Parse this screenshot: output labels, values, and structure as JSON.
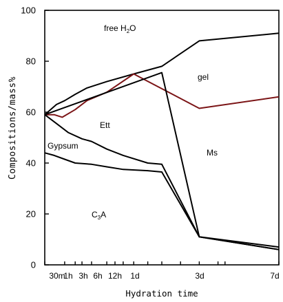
{
  "chart_data": {
    "type": "line",
    "xlabel": "Hydration time",
    "ylabel": "Compositions/mass%",
    "ylim": [
      0,
      100
    ],
    "yticks": [
      0,
      20,
      40,
      60,
      80,
      100
    ],
    "x_tick_labels": [
      "30m",
      "1h",
      "3h",
      "6h",
      "12h",
      "1d",
      "3d",
      "7d"
    ],
    "x_positions": [
      0.0,
      0.085,
      0.13,
      0.159,
      0.2,
      0.265,
      0.3,
      0.335,
      0.38,
      0.44,
      0.5,
      0.58,
      0.66,
      0.74,
      0.77,
      1.0
    ],
    "region_labels": {
      "free_h2o": {
        "main": "free H",
        "sub": "2",
        "tail": "O"
      },
      "gel": "gel",
      "ett": "Ett",
      "gypsum": "Gypsum",
      "ms": "Ms",
      "c3a": {
        "main": "C",
        "sub": "3",
        "tail": "A"
      }
    },
    "series": [
      {
        "color": "#000000",
        "points": [
          [
            0.0,
            59
          ],
          [
            0.05,
            63
          ],
          [
            0.085,
            64.5
          ],
          [
            0.13,
            67
          ],
          [
            0.18,
            69.5
          ],
          [
            0.265,
            72
          ],
          [
            0.38,
            75
          ],
          [
            0.5,
            78
          ],
          [
            0.66,
            88
          ],
          [
            1.0,
            91
          ]
        ]
      },
      {
        "color": "#7b1416",
        "points": [
          [
            0.0,
            59
          ],
          [
            0.04,
            59
          ],
          [
            0.075,
            58
          ],
          [
            0.13,
            61
          ],
          [
            0.18,
            64.5
          ],
          [
            0.265,
            67.8
          ],
          [
            0.38,
            75
          ],
          [
            0.66,
            61.5
          ],
          [
            1.0,
            66
          ]
        ]
      },
      {
        "color": "#000000",
        "points": [
          [
            0.0,
            59
          ],
          [
            0.5,
            75.5
          ],
          [
            0.66,
            11
          ],
          [
            1.0,
            7
          ]
        ]
      },
      {
        "color": "#000000",
        "points": [
          [
            0.0,
            59
          ],
          [
            0.05,
            55.5
          ],
          [
            0.1,
            52
          ],
          [
            0.159,
            49.5
          ],
          [
            0.2,
            48.5
          ],
          [
            0.265,
            45.5
          ],
          [
            0.335,
            43
          ],
          [
            0.44,
            40
          ],
          [
            0.5,
            39.5
          ],
          [
            0.66,
            11
          ],
          [
            1.0,
            6
          ]
        ]
      },
      {
        "color": "#000000",
        "points": [
          [
            0.0,
            44
          ],
          [
            0.04,
            43
          ],
          [
            0.085,
            41.5
          ],
          [
            0.13,
            40
          ],
          [
            0.2,
            39.5
          ],
          [
            0.265,
            38.5
          ],
          [
            0.335,
            37.5
          ],
          [
            0.44,
            37
          ],
          [
            0.5,
            36.5
          ],
          [
            0.66,
            11
          ],
          [
            1.0,
            6
          ]
        ]
      }
    ]
  }
}
